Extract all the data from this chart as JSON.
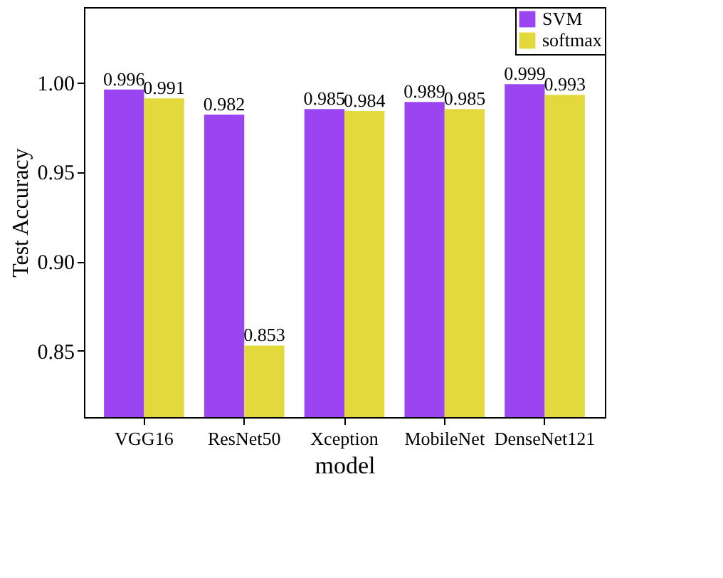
{
  "chart_data": {
    "type": "bar",
    "xlabel": "model",
    "ylabel": "Test Accuracy",
    "categories": [
      "VGG16",
      "ResNet50",
      "Xception",
      "MobileNet",
      "DenseNet121"
    ],
    "series": [
      {
        "name": "SVM",
        "color": "#9b45f2",
        "values": [
          0.996,
          0.982,
          0.985,
          0.989,
          0.999
        ]
      },
      {
        "name": "softmax",
        "color": "#e3d83c",
        "values": [
          0.991,
          0.853,
          0.984,
          0.985,
          0.993
        ]
      }
    ],
    "ylim": [
      0.813,
      1.042
    ],
    "yticks": [
      0.85,
      {
        "value": 0.9,
        "label": "0.90"
      },
      0.95,
      {
        "value": 1.0,
        "label": "1.00"
      }
    ],
    "data_labels": true,
    "legend": "top right",
    "grid": false
  }
}
